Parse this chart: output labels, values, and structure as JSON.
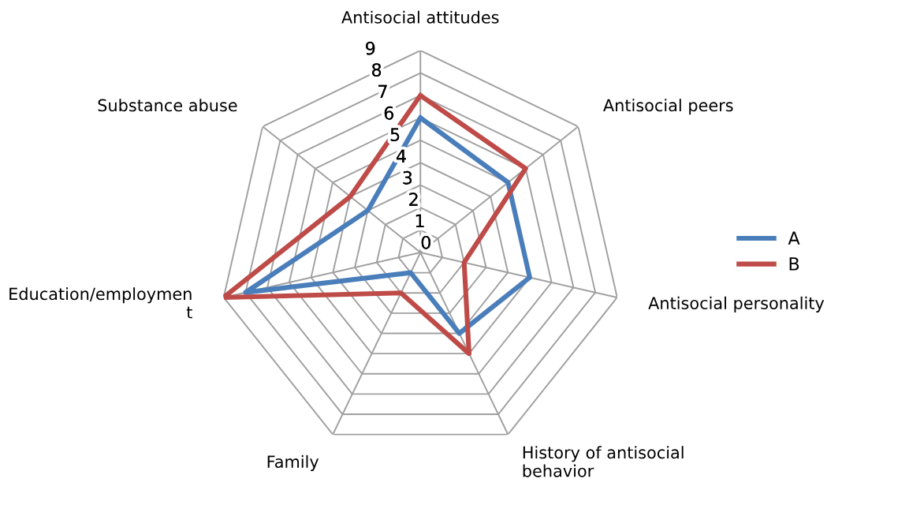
{
  "chart_data": {
    "type": "radar",
    "categories": [
      "Antisocial attitudes",
      "Antisocial peers",
      "Antisocial personality",
      "History of antisocial\nbehavior",
      "Family",
      "Education/employmen\nt",
      "Substance abuse"
    ],
    "series": [
      {
        "name": "A",
        "color": "#4a7ebb",
        "values": [
          6,
          5,
          5,
          4,
          1,
          8,
          3
        ]
      },
      {
        "name": "B",
        "color": "#be4b48",
        "values": [
          7,
          6,
          2,
          5,
          2,
          9,
          4
        ]
      }
    ],
    "ylim": [
      0,
      9
    ],
    "yticks": [
      0,
      1,
      2,
      3,
      4,
      5,
      6,
      7,
      8,
      9
    ],
    "grid": true,
    "legend": "right",
    "marker": "none"
  }
}
